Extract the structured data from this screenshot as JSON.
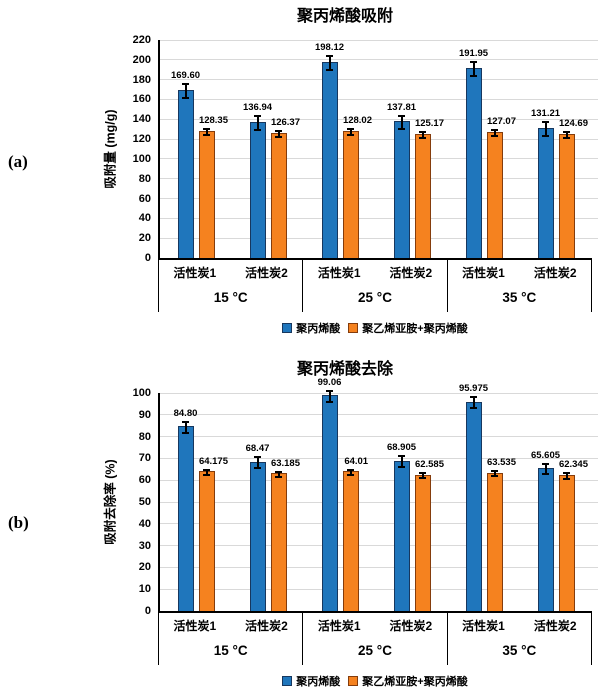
{
  "panel_labels": [
    "(a)",
    "(b)"
  ],
  "colors": {
    "series1_fill": "#1F76BC",
    "series1_border": "#17375E",
    "series2_fill": "#F5821F",
    "series2_border": "#843C0C",
    "gridline": "#D9D9D9",
    "axis": "#000000",
    "text": "#000000",
    "background": "#FFFFFF"
  },
  "chart_data": [
    {
      "type": "bar",
      "panel_label": "(a)",
      "title": "聚丙烯酸吸附",
      "ylabel": "吸附量 (mg/g)",
      "ylim": [
        0,
        220
      ],
      "ytick_step": 20,
      "grid": true,
      "legend_position": "bottom",
      "group_labels": [
        "15 °C",
        "25 °C",
        "35 °C"
      ],
      "categories": [
        "活性炭1",
        "活性炭2"
      ],
      "series": [
        {
          "name": "聚丙烯酸",
          "fill": "#1F76BC",
          "border": "#17375E",
          "error_half": 7,
          "values": [
            "169.60",
            "136.94",
            "198.12",
            "137.81",
            "191.95",
            "131.21"
          ]
        },
        {
          "name": "聚乙烯亚胺+聚丙烯酸",
          "fill": "#F5821F",
          "border": "#843C0C",
          "error_half": 3,
          "values": [
            "128.35",
            "126.37",
            "128.02",
            "125.17",
            "127.07",
            "124.69"
          ]
        }
      ]
    },
    {
      "type": "bar",
      "panel_label": "(b)",
      "title": "聚丙烯酸去除",
      "ylabel": "吸附去除率 (%)",
      "ylim": [
        0,
        100
      ],
      "ytick_step": 10,
      "grid": true,
      "legend_position": "bottom",
      "group_labels": [
        "15 °C",
        "25 °C",
        "35 °C"
      ],
      "categories": [
        "活性炭1",
        "活性炭2"
      ],
      "series": [
        {
          "name": "聚丙烯酸",
          "fill": "#1F76BC",
          "border": "#17375E",
          "error_half": 2.5,
          "values": [
            "84.80",
            "68.47",
            "99.06",
            "68.905",
            "95.975",
            "65.605"
          ]
        },
        {
          "name": "聚乙烯亚胺+聚丙烯酸",
          "fill": "#F5821F",
          "border": "#843C0C",
          "error_half": 1.2,
          "values": [
            "64.175",
            "63.185",
            "64.01",
            "62.585",
            "63.535",
            "62.345"
          ]
        }
      ]
    }
  ]
}
